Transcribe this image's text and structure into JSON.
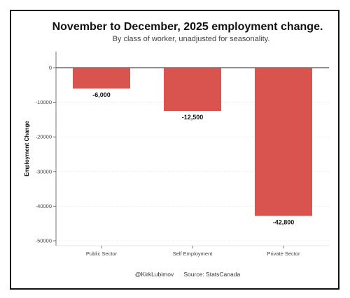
{
  "chart_data": {
    "type": "bar",
    "title": "November to December, 2025 employment change.",
    "subtitle": "By class of worker, unadjusted for seasonality.",
    "ylabel": "Employment Change",
    "xlabel": "",
    "categories": [
      "Public Sector",
      "Self Employment",
      "Private Sector"
    ],
    "values": [
      -6000,
      -12500,
      -42800
    ],
    "data_labels": [
      "-6,000",
      "-12,500",
      "-42,800"
    ],
    "yticks": [
      0,
      -10000,
      -20000,
      -30000,
      -40000,
      -50000
    ],
    "ylim": [
      -52000,
      5000
    ],
    "grid": true,
    "legend": "none",
    "bar_color": "#d9534f"
  },
  "footer": "@KirkLubimov      Source: StatsCanada"
}
